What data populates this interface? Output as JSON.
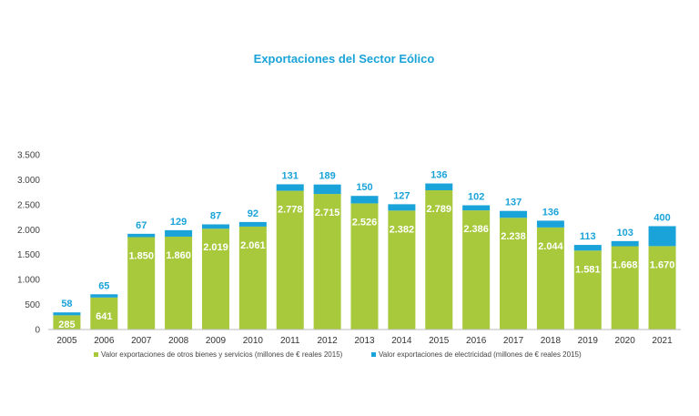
{
  "chart_data": {
    "type": "bar",
    "stacked": true,
    "title": "Exportaciones del Sector Eólico",
    "categories": [
      "2005",
      "2006",
      "2007",
      "2008",
      "2009",
      "2010",
      "2011",
      "2012",
      "2013",
      "2014",
      "2015",
      "2016",
      "2017",
      "2018",
      "2019",
      "2020",
      "2021"
    ],
    "series": [
      {
        "name": "Valor exportaciones de otros bienes y servicios (millones de € reales 2015)",
        "color": "#a7c93b",
        "values": [
          285,
          641,
          1850,
          1860,
          2019,
          2061,
          2778,
          2715,
          2526,
          2382,
          2789,
          2386,
          2238,
          2044,
          1581,
          1668,
          1670
        ],
        "labels": [
          "285",
          "641",
          "1.850",
          "1.860",
          "2.019",
          "2.061",
          "2.778",
          "2.715",
          "2.526",
          "2.382",
          "2.789",
          "2.386",
          "2.238",
          "2.044",
          "1.581",
          "1.668",
          "1.670"
        ]
      },
      {
        "name": "Valor exportaciones de electricidad (millones de € reales 2015)",
        "color": "#1aa3d9",
        "values": [
          58,
          65,
          67,
          129,
          87,
          92,
          131,
          189,
          150,
          127,
          136,
          102,
          137,
          136,
          113,
          103,
          400
        ],
        "labels": [
          "58",
          "65",
          "67",
          "129",
          "87",
          "92",
          "131",
          "189",
          "150",
          "127",
          "136",
          "102",
          "137",
          "136",
          "113",
          "103",
          "400"
        ]
      }
    ],
    "ylim": [
      0,
      3500
    ],
    "yticks": [
      0,
      500,
      1000,
      1500,
      2000,
      2500,
      3000,
      3500
    ],
    "ytick_labels": [
      "0",
      "500",
      "1.000",
      "1.500",
      "2.000",
      "2.500",
      "3.000",
      "3.500"
    ],
    "grid": false,
    "legend_position": "bottom"
  }
}
